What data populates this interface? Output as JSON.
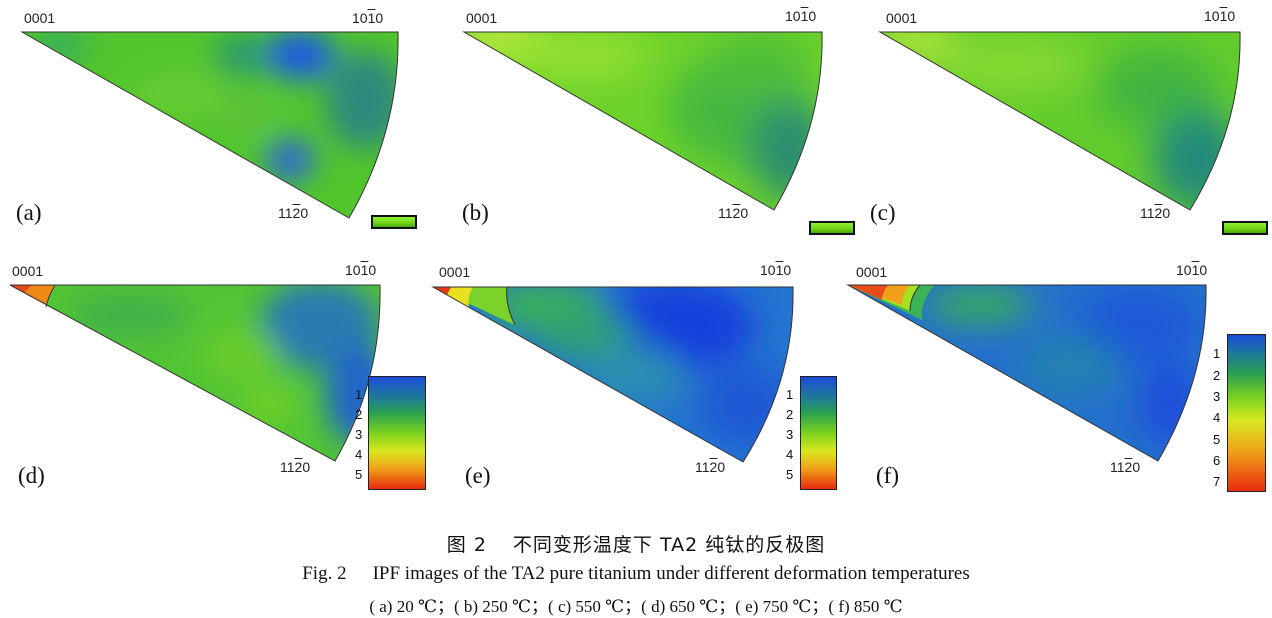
{
  "corner_labels": {
    "c0001": "0001",
    "c1010_a": "10",
    "c1010_b": "1",
    "c1010_c": "0",
    "c1120_a": "11",
    "c1120_b": "2",
    "c1120_c": "0"
  },
  "panels": [
    {
      "label": "(a)"
    },
    {
      "label": "(b)"
    },
    {
      "label": "(c)"
    },
    {
      "label": "(d)"
    },
    {
      "label": "(e)"
    },
    {
      "label": "(f)"
    }
  ],
  "legend_ticks_5": [
    "1",
    "2",
    "3",
    "4",
    "5"
  ],
  "legend_ticks_7": [
    "1",
    "2",
    "3",
    "4",
    "5",
    "6",
    "7"
  ],
  "caption": {
    "cn_number": "图 2",
    "cn_title": "不同变形温度下 TA2 纯钛的反极图",
    "en_number": "Fig. 2",
    "en_title": "IPF images of the TA2 pure titanium under different deformation temperatures",
    "sub": "( a) 20 ℃；( b) 250 ℃；( c) 550 ℃；( d) 650 ℃；( e) 750 ℃；( f) 850 ℃"
  }
}
